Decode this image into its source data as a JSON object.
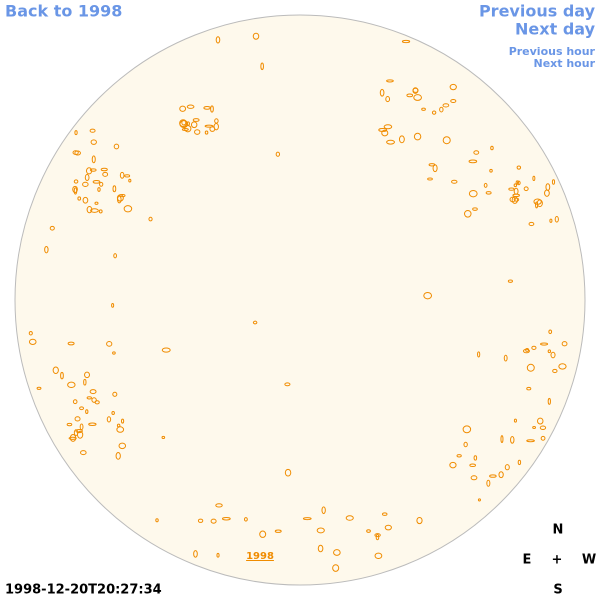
{
  "nav": {
    "back_year": "Back to 1998",
    "previous_day": "Previous day",
    "next_day": "Next day",
    "previous_hour": "Previous hour",
    "next_hour": "Next hour"
  },
  "disk": {
    "year_link": "1998"
  },
  "timestamp": "1998-12-20T20:27:34",
  "compass": {
    "north": "N",
    "east": "E",
    "center": "+",
    "west": "W",
    "south": "S"
  }
}
